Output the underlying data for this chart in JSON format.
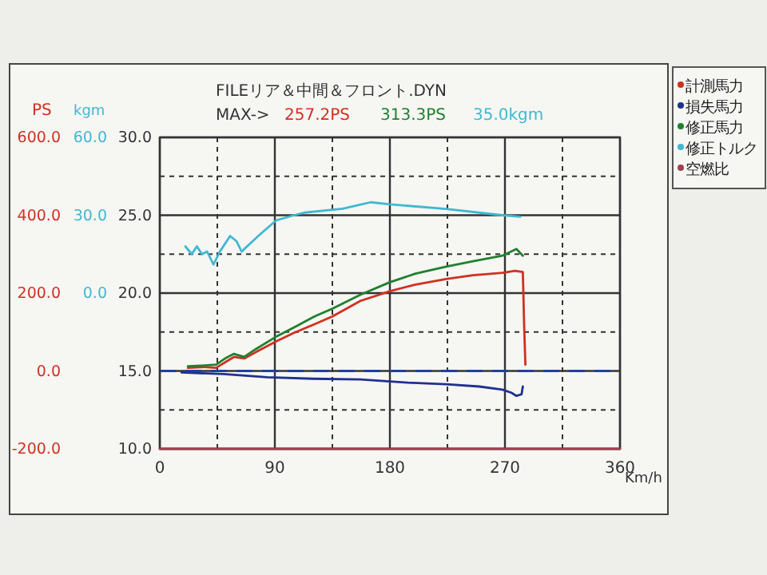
{
  "chart_data": {
    "type": "line",
    "title": "FILEリア＆中間＆フロント.DYN",
    "ylabel": "PS",
    "y2label": "kgm",
    "xlabel": "Km/h",
    "annotations": [
      "MAX->",
      "257.2PS",
      "313.3PS",
      "35.0kgm"
    ],
    "xlim": [
      0,
      360
    ],
    "xticks": [
      0,
      {
        "value": 45,
        "label": null
      },
      90,
      {
        "value": 135,
        "label": null
      },
      180,
      {
        "value": 225,
        "label": null
      },
      270,
      {
        "value": 315,
        "label": null
      },
      360
    ],
    "ylim": [
      -200,
      600
    ],
    "yticks": [
      {
        "value": 600,
        "label": "600.0"
      },
      {
        "value": 400,
        "label": "400.0"
      },
      {
        "value": 200,
        "label": "200.0"
      },
      {
        "value": 0,
        "label": "0.0"
      },
      {
        "value": -200,
        "label": "-200.0"
      }
    ],
    "y2lim": [
      -60,
      60
    ],
    "y2ticks": [
      {
        "value": 60,
        "label": "60.0"
      },
      {
        "value": 30,
        "label": "30.0"
      },
      {
        "value": 0,
        "label": "0.0"
      }
    ],
    "y3lim": [
      10,
      30
    ],
    "y3ticks": [
      {
        "value": 30,
        "label": "30.0"
      },
      {
        "value": 27.5,
        "label": null
      },
      {
        "value": 25,
        "label": "25.0"
      },
      {
        "value": 22.5,
        "label": null
      },
      {
        "value": 20,
        "label": "20.0"
      },
      {
        "value": 17.5,
        "label": null
      },
      {
        "value": 15,
        "label": "15.0"
      },
      {
        "value": 12.5,
        "label": null
      },
      {
        "value": 10,
        "label": "10.0"
      }
    ],
    "grid": true,
    "legend": "right",
    "line_style": "solid",
    "ref_lines": [
      {
        "axis": "y",
        "value": 0,
        "label": null,
        "color": "#2040a0",
        "line_style": "dashed"
      }
    ],
    "series": [
      {
        "name": "計測馬力",
        "color": "#d03020",
        "x": [
          22,
          35,
          44,
          52,
          58,
          66,
          75,
          91,
          105,
          121,
          135,
          157,
          180,
          200,
          224,
          245,
          268,
          278,
          284,
          285,
          286
        ],
        "values": [
          8,
          10,
          8,
          24,
          36,
          32,
          48,
          76,
          98,
          120,
          140,
          180,
          205,
          222,
          236,
          246,
          252,
          257.2,
          254,
          120,
          16
        ]
      },
      {
        "name": "損失馬力",
        "color": "#203090",
        "x": [
          17,
          50,
          84,
          120,
          157,
          194,
          224,
          250,
          268,
          275,
          279,
          283,
          284
        ],
        "values": [
          -4,
          -8,
          -16,
          -20,
          -22,
          -30,
          -34,
          -40,
          -48,
          -56,
          -64,
          -60,
          -40
        ]
      },
      {
        "name": "修正馬力",
        "color": "#208030",
        "x": [
          22,
          35,
          44,
          52,
          58,
          66,
          75,
          91,
          105,
          121,
          135,
          157,
          180,
          200,
          224,
          245,
          268,
          279,
          284
        ],
        "values": [
          12,
          14,
          16,
          34,
          44,
          36,
          56,
          88,
          112,
          140,
          160,
          196,
          228,
          250,
          268,
          282,
          296,
          313.3,
          296
        ]
      },
      {
        "name": "修正トルク",
        "color": "#40b8d0",
        "axis": "y2",
        "x": [
          20,
          25,
          29,
          33,
          37,
          42,
          47,
          55,
          60,
          64,
          77,
          91,
          105,
          113,
          143,
          165,
          180,
          224,
          268,
          282
        ],
        "values": [
          18,
          15,
          18,
          15,
          16,
          11,
          16,
          22,
          20,
          16,
          22,
          28,
          30,
          31,
          32.5,
          35.0,
          34.2,
          32.4,
          30,
          29.4
        ]
      },
      {
        "name": "空燃比",
        "color": "#a04050",
        "axis": "y3",
        "x": [
          0,
          360
        ],
        "values": [
          10,
          10
        ]
      }
    ]
  }
}
